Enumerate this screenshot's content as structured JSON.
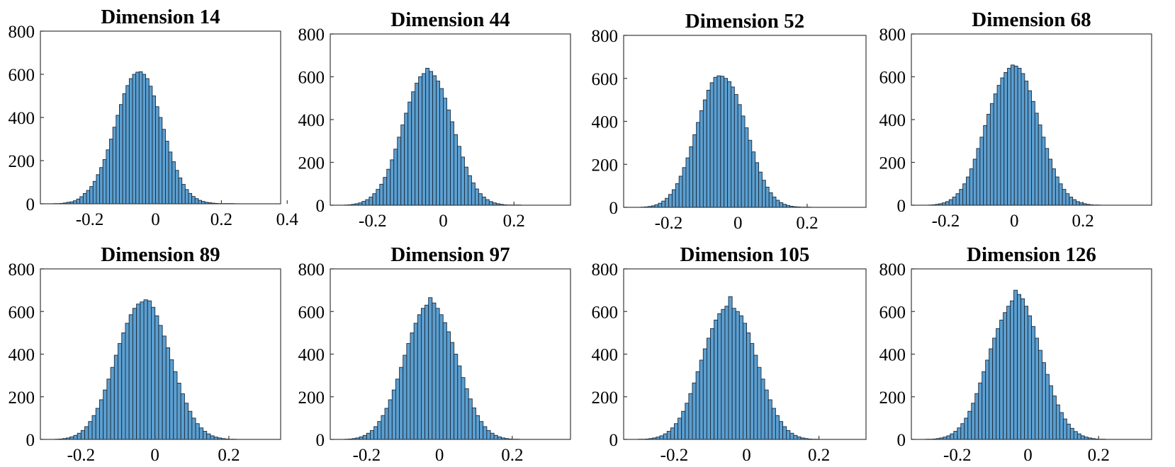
{
  "chart_data": [
    {
      "type": "bar",
      "title": "Dimension 14",
      "xlim": [
        -0.35,
        0.38
      ],
      "ylim": [
        0,
        800
      ],
      "xticks": [
        -0.2,
        0,
        0.2,
        0.4
      ],
      "xtick_labels": [
        "-0.2",
        "0",
        "0.2",
        "0.4"
      ],
      "yticks": [
        0,
        200,
        400,
        600,
        800
      ],
      "ytick_labels": [
        "0",
        "200",
        "400",
        "600",
        "800"
      ],
      "bin_start": -0.31,
      "bin_width": 0.01,
      "values": [
        1,
        1,
        2,
        4,
        7,
        9,
        14,
        22,
        33,
        48,
        62,
        80,
        104,
        135,
        168,
        205,
        250,
        300,
        355,
        410,
        460,
        510,
        548,
        580,
        600,
        610,
        612,
        600,
        580,
        545,
        500,
        450,
        400,
        345,
        290,
        240,
        195,
        155,
        120,
        90,
        66,
        48,
        34,
        24,
        16,
        11,
        7,
        5,
        3,
        2,
        1,
        1,
        1,
        1,
        1
      ]
    },
    {
      "type": "bar",
      "title": "Dimension 44",
      "xlim": [
        -0.32,
        0.36
      ],
      "ylim": [
        0,
        800
      ],
      "xticks": [
        -0.2,
        0,
        0.2
      ],
      "xtick_labels": [
        "-0.2",
        "0",
        "0.2"
      ],
      "yticks": [
        0,
        200,
        400,
        600,
        800
      ],
      "ytick_labels": [
        "0",
        "200",
        "400",
        "600",
        "800"
      ],
      "bin_start": -0.28,
      "bin_width": 0.01,
      "values": [
        1,
        2,
        4,
        7,
        11,
        18,
        26,
        38,
        54,
        74,
        98,
        130,
        168,
        212,
        262,
        318,
        375,
        430,
        482,
        530,
        570,
        600,
        615,
        640,
        625,
        605,
        580,
        545,
        500,
        445,
        390,
        330,
        275,
        225,
        178,
        138,
        104,
        76,
        54,
        38,
        26,
        17,
        11,
        7,
        4,
        2,
        1,
        1,
        1,
        1
      ]
    },
    {
      "type": "bar",
      "title": "Dimension 52",
      "xlim": [
        -0.33,
        0.37
      ],
      "ylim": [
        0,
        800
      ],
      "xticks": [
        -0.2,
        0,
        0.2
      ],
      "xtick_labels": [
        "-0.2",
        "0",
        "0.2"
      ],
      "yticks": [
        0,
        200,
        400,
        600,
        800
      ],
      "ytick_labels": [
        "0",
        "200",
        "400",
        "600",
        "800"
      ],
      "bin_start": -0.28,
      "bin_width": 0.01,
      "values": [
        1,
        2,
        4,
        7,
        12,
        19,
        29,
        42,
        60,
        82,
        110,
        145,
        185,
        230,
        282,
        338,
        395,
        450,
        500,
        545,
        580,
        605,
        612,
        610,
        600,
        585,
        560,
        525,
        478,
        425,
        370,
        312,
        258,
        208,
        164,
        126,
        94,
        68,
        48,
        33,
        22,
        14,
        9,
        5,
        3,
        2,
        1,
        1,
        1
      ]
    },
    {
      "type": "bar",
      "title": "Dimension 68",
      "xlim": [
        -0.3,
        0.4
      ],
      "ylim": [
        0,
        800
      ],
      "xticks": [
        -0.2,
        0,
        0.2
      ],
      "xtick_labels": [
        "-0.2",
        "0",
        "0.2"
      ],
      "yticks": [
        0,
        200,
        400,
        600,
        800
      ],
      "ytick_labels": [
        "0",
        "200",
        "400",
        "600",
        "800"
      ],
      "bin_start": -0.25,
      "bin_width": 0.01,
      "values": [
        1,
        2,
        4,
        7,
        11,
        17,
        26,
        38,
        54,
        74,
        100,
        132,
        170,
        215,
        265,
        318,
        372,
        425,
        475,
        520,
        560,
        595,
        620,
        640,
        655,
        650,
        640,
        615,
        580,
        535,
        485,
        430,
        375,
        318,
        265,
        215,
        170,
        132,
        100,
        74,
        54,
        38,
        26,
        17,
        11,
        7,
        4,
        2,
        1,
        1
      ]
    },
    {
      "type": "bar",
      "title": "Dimension 89",
      "xlim": [
        -0.31,
        0.34
      ],
      "ylim": [
        0,
        800
      ],
      "xticks": [
        -0.2,
        0,
        0.2
      ],
      "xtick_labels": [
        "-0.2",
        "0",
        "0.2"
      ],
      "yticks": [
        0,
        200,
        400,
        600,
        800
      ],
      "ytick_labels": [
        "0",
        "200",
        "400",
        "600",
        "800"
      ],
      "bin_start": -0.27,
      "bin_width": 0.01,
      "values": [
        1,
        2,
        4,
        7,
        12,
        19,
        29,
        42,
        60,
        84,
        112,
        146,
        186,
        232,
        283,
        338,
        395,
        450,
        500,
        545,
        585,
        615,
        635,
        645,
        655,
        650,
        620,
        580,
        535,
        485,
        430,
        374,
        318,
        264,
        214,
        170,
        132,
        100,
        74,
        54,
        38,
        26,
        17,
        11,
        7,
        4,
        2,
        1,
        1
      ]
    },
    {
      "type": "bar",
      "title": "Dimension 97",
      "xlim": [
        -0.3,
        0.36
      ],
      "ylim": [
        0,
        800
      ],
      "xticks": [
        -0.2,
        0,
        0.2
      ],
      "xtick_labels": [
        "-0.2",
        "0",
        "0.2"
      ],
      "yticks": [
        0,
        200,
        400,
        600,
        800
      ],
      "ytick_labels": [
        "0",
        "200",
        "400",
        "600",
        "800"
      ],
      "bin_start": -0.26,
      "bin_width": 0.01,
      "values": [
        1,
        2,
        4,
        7,
        12,
        19,
        29,
        42,
        60,
        84,
        112,
        146,
        186,
        232,
        283,
        338,
        395,
        450,
        500,
        545,
        585,
        615,
        630,
        665,
        640,
        615,
        585,
        548,
        505,
        455,
        400,
        345,
        290,
        238,
        190,
        148,
        112,
        84,
        60,
        42,
        29,
        19,
        12,
        7,
        4,
        2,
        1,
        1
      ]
    },
    {
      "type": "bar",
      "title": "Dimension 105",
      "xlim": [
        -0.34,
        0.33
      ],
      "ylim": [
        0,
        800
      ],
      "xticks": [
        -0.2,
        0,
        0.2
      ],
      "xtick_labels": [
        "-0.2",
        "0",
        "0.2"
      ],
      "yticks": [
        0,
        200,
        400,
        600,
        800
      ],
      "ytick_labels": [
        "0",
        "200",
        "400",
        "600",
        "800"
      ],
      "bin_start": -0.3,
      "bin_width": 0.01,
      "values": [
        1,
        1,
        2,
        4,
        7,
        11,
        17,
        26,
        38,
        54,
        74,
        100,
        132,
        170,
        215,
        265,
        318,
        372,
        425,
        475,
        520,
        560,
        590,
        610,
        625,
        670,
        615,
        600,
        580,
        545,
        500,
        450,
        395,
        338,
        283,
        232,
        186,
        146,
        112,
        84,
        60,
        42,
        29,
        19,
        12,
        7,
        4,
        2,
        1,
        1
      ]
    },
    {
      "type": "bar",
      "title": "Dimension 126",
      "xlim": [
        -0.33,
        0.35
      ],
      "ylim": [
        0,
        800
      ],
      "xticks": [
        -0.2,
        0,
        0.2
      ],
      "xtick_labels": [
        "-0.2",
        "0",
        "0.2"
      ],
      "yticks": [
        0,
        200,
        400,
        600,
        800
      ],
      "ytick_labels": [
        "0",
        "200",
        "400",
        "600",
        "800"
      ],
      "bin_start": -0.29,
      "bin_width": 0.01,
      "values": [
        1,
        1,
        2,
        4,
        7,
        11,
        17,
        26,
        38,
        54,
        74,
        100,
        132,
        170,
        215,
        265,
        318,
        372,
        425,
        475,
        520,
        560,
        595,
        625,
        650,
        700,
        680,
        660,
        625,
        580,
        530,
        475,
        418,
        360,
        305,
        252,
        204,
        162,
        126,
        96,
        72,
        52,
        37,
        26,
        17,
        11,
        7,
        4,
        2,
        1,
        1
      ]
    }
  ]
}
